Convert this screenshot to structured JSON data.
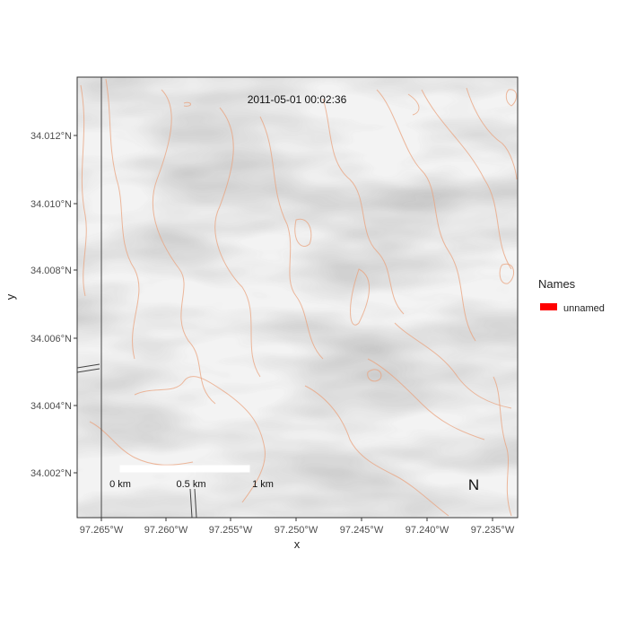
{
  "map": {
    "timestamp": "2011-05-01 00:02:36",
    "x_axis_title": "x",
    "y_axis_title": "y",
    "x_ticks": [
      "97.265°W",
      "97.260°W",
      "97.255°W",
      "97.250°W",
      "97.245°W",
      "97.240°W",
      "97.235°W"
    ],
    "y_ticks": [
      "34.012°N",
      "34.010°N",
      "34.008°N",
      "34.006°N",
      "34.004°N",
      "34.002°N"
    ],
    "scale_bar": {
      "labels": [
        "0 km",
        "0.5 km",
        "1 km"
      ]
    },
    "north_arrow": "N",
    "legend": {
      "title": "Names",
      "items": [
        {
          "label": "unnamed",
          "color": "#ff0000"
        }
      ]
    },
    "colors": {
      "contour": "#e9a27c",
      "panel_border": "#333333"
    }
  }
}
